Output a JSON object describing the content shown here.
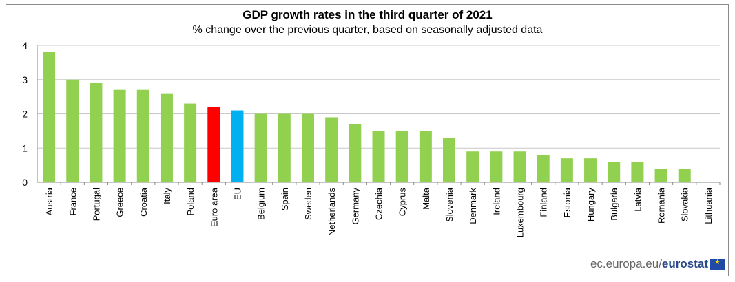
{
  "title": "GDP growth rates in the third quarter of  2021",
  "subtitle": "% change over the previous  quarter, based on seasonally adjusted data",
  "footer": {
    "domain": "ec.europa.eu/",
    "brand": "eurostat"
  },
  "colors": {
    "default": "#92d050",
    "euro_area": "#ff0000",
    "eu": "#00b0f0",
    "grid": "#c8c8c8",
    "axis": "#8a8a8a"
  },
  "chart_data": {
    "type": "bar",
    "title": "GDP growth rates in the third quarter of  2021",
    "subtitle": "% change over the previous  quarter, based on seasonally adjusted data",
    "xlabel": "",
    "ylabel": "",
    "ylim": [
      0,
      4
    ],
    "yticks": [
      0,
      1,
      2,
      3,
      4
    ],
    "grid": true,
    "categories": [
      "Austria",
      "France",
      "Portugal",
      "Greece",
      "Croatia",
      "Italy",
      "Poland",
      "Euro area",
      "EU",
      "Belgium",
      "Spain",
      "Sweden",
      "Netherlands",
      "Germany",
      "Czechia",
      "Cyprus",
      "Malta",
      "Slovenia",
      "Denmark",
      "Ireland",
      "Luxembourg",
      "Finland",
      "Estonia",
      "Hungary",
      "Bulgaria",
      "Latvia",
      "Romania",
      "Slovakia",
      "Lithuania"
    ],
    "values": [
      3.8,
      3.0,
      2.9,
      2.7,
      2.7,
      2.6,
      2.3,
      2.2,
      2.1,
      2.0,
      2.0,
      2.0,
      1.9,
      1.7,
      1.5,
      1.5,
      1.5,
      1.3,
      0.9,
      0.9,
      0.9,
      0.8,
      0.7,
      0.7,
      0.6,
      0.6,
      0.4,
      0.4,
      0.0
    ],
    "highlight": {
      "Euro area": "#ff0000",
      "EU": "#00b0f0"
    }
  }
}
